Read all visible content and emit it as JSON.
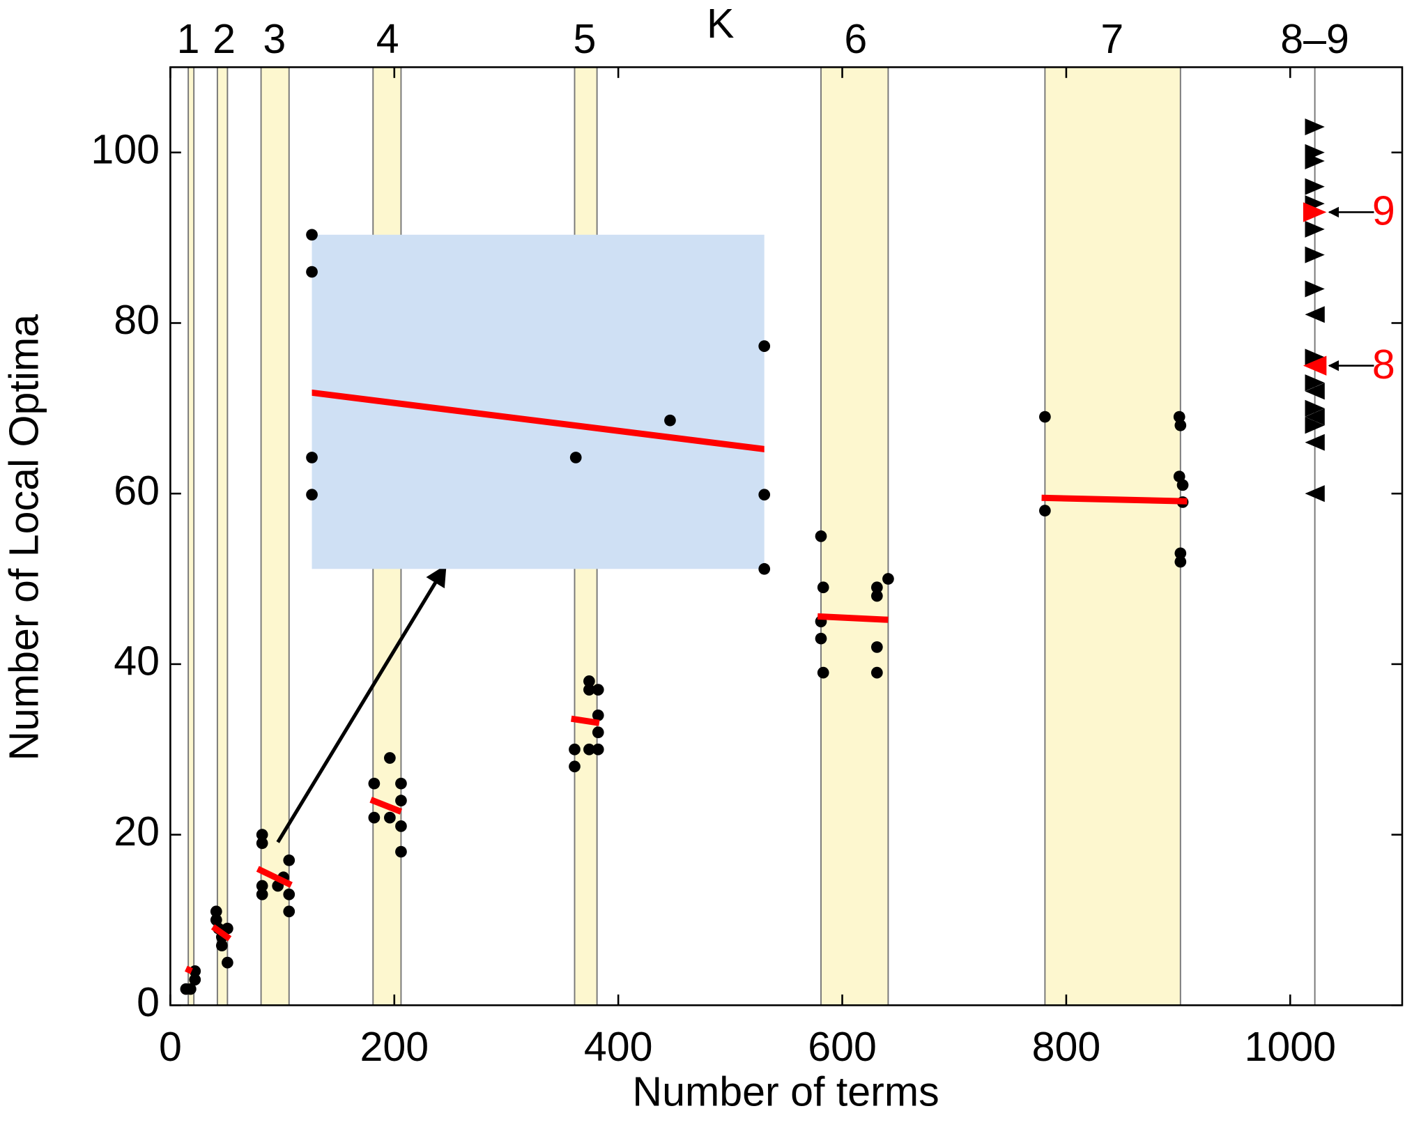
{
  "chart_data": {
    "type": "scatter",
    "xlabel": "Number of terms",
    "ylabel": "Number of Local Optima",
    "toplabel": "K",
    "xlim": [
      0,
      1100
    ],
    "ylim": [
      0,
      110
    ],
    "xticks": [
      0,
      200,
      400,
      600,
      800,
      1000
    ],
    "yticks": [
      0,
      20,
      40,
      60,
      80,
      100
    ],
    "topticks": [
      {
        "value": 16,
        "label": "1"
      },
      {
        "value": 48,
        "label": "2"
      },
      {
        "value": 93,
        "label": "3"
      },
      {
        "value": 194,
        "label": "4"
      },
      {
        "value": 370,
        "label": "5"
      },
      {
        "value": 612,
        "label": "6"
      },
      {
        "value": 841,
        "label": "7"
      },
      {
        "value": 1022,
        "label": "8–9"
      }
    ],
    "bands": [
      [
        16,
        21
      ],
      [
        42,
        51
      ],
      [
        81,
        106
      ],
      [
        181,
        206
      ],
      [
        361,
        381
      ],
      [
        581,
        641
      ],
      [
        781,
        902
      ],
      [
        1022,
        1022
      ]
    ],
    "band_color": "#fdf7cf",
    "point_color": "#000000",
    "fit_color": "#ff0000",
    "series": [
      {
        "x": [
          14,
          18,
          22,
          22
        ],
        "y": [
          1.9,
          1.9,
          3,
          4
        ]
      },
      {
        "x": [
          41,
          41,
          43,
          46,
          46,
          51,
          51
        ],
        "y": [
          11,
          10,
          9,
          8,
          7,
          9,
          5
        ]
      },
      {
        "x": [
          82,
          82,
          82,
          82,
          96,
          101,
          106,
          106,
          106
        ],
        "y": [
          20,
          19,
          14,
          13,
          14,
          15,
          17,
          13,
          11
        ]
      },
      {
        "x": [
          182,
          182,
          196,
          196,
          206,
          206,
          206,
          206
        ],
        "y": [
          26,
          22,
          29,
          22,
          26,
          24,
          21,
          18
        ]
      },
      {
        "x": [
          361,
          361,
          374,
          374,
          382,
          382,
          382,
          382,
          374
        ],
        "y": [
          30,
          28,
          38,
          37,
          37,
          34,
          32,
          30,
          30
        ]
      },
      {
        "x": [
          581,
          583,
          581,
          581,
          583,
          631,
          631,
          631,
          631,
          641
        ],
        "y": [
          55,
          49,
          45,
          43,
          39,
          49,
          48,
          42,
          39,
          50
        ]
      },
      {
        "x": [
          781,
          781,
          901,
          902,
          901,
          904,
          904,
          902,
          902
        ],
        "y": [
          69,
          58,
          69,
          68,
          62,
          61,
          59,
          53,
          52
        ]
      }
    ],
    "fits": [
      {
        "x": [
          14,
          19
        ],
        "y": [
          4.3,
          4.0
        ]
      },
      {
        "x": [
          38,
          53
        ],
        "y": [
          9.2,
          7.8
        ]
      },
      {
        "x": [
          78,
          108
        ],
        "y": [
          16.0,
          14.1
        ]
      },
      {
        "x": [
          179,
          206
        ],
        "y": [
          24.1,
          22.7
        ]
      },
      {
        "x": [
          358,
          383
        ],
        "y": [
          33.6,
          33.1
        ]
      },
      {
        "x": [
          578,
          641
        ],
        "y": [
          45.6,
          45.2
        ]
      },
      {
        "x": [
          778,
          908
        ],
        "y": [
          59.5,
          59.1
        ]
      }
    ],
    "triangles": {
      "x": [
        1022,
        1022,
        1022,
        1022,
        1022,
        1022,
        1022,
        1022,
        1022,
        1022,
        1022,
        1022,
        1022,
        1022,
        1022,
        1022,
        1022
      ],
      "y": [
        103,
        100,
        99,
        96,
        94,
        91,
        88,
        84,
        81,
        76,
        73,
        72,
        70,
        69,
        68,
        66,
        60
      ],
      "markers": [
        "right",
        "right",
        "right",
        "right",
        "right",
        "right",
        "right",
        "right",
        "left",
        "right",
        "right",
        "left",
        "right",
        "left",
        "right",
        "left",
        "left"
      ]
    },
    "highlights": {
      "x": [
        1022,
        1022
      ],
      "y": [
        93,
        75
      ],
      "labels": [
        "9",
        "8"
      ],
      "markers": [
        "right",
        "left"
      ]
    },
    "inset": {
      "xlim": [
        82,
        106
      ],
      "ylim": [
        11,
        20
      ],
      "color": "#cfe0f4"
    }
  }
}
